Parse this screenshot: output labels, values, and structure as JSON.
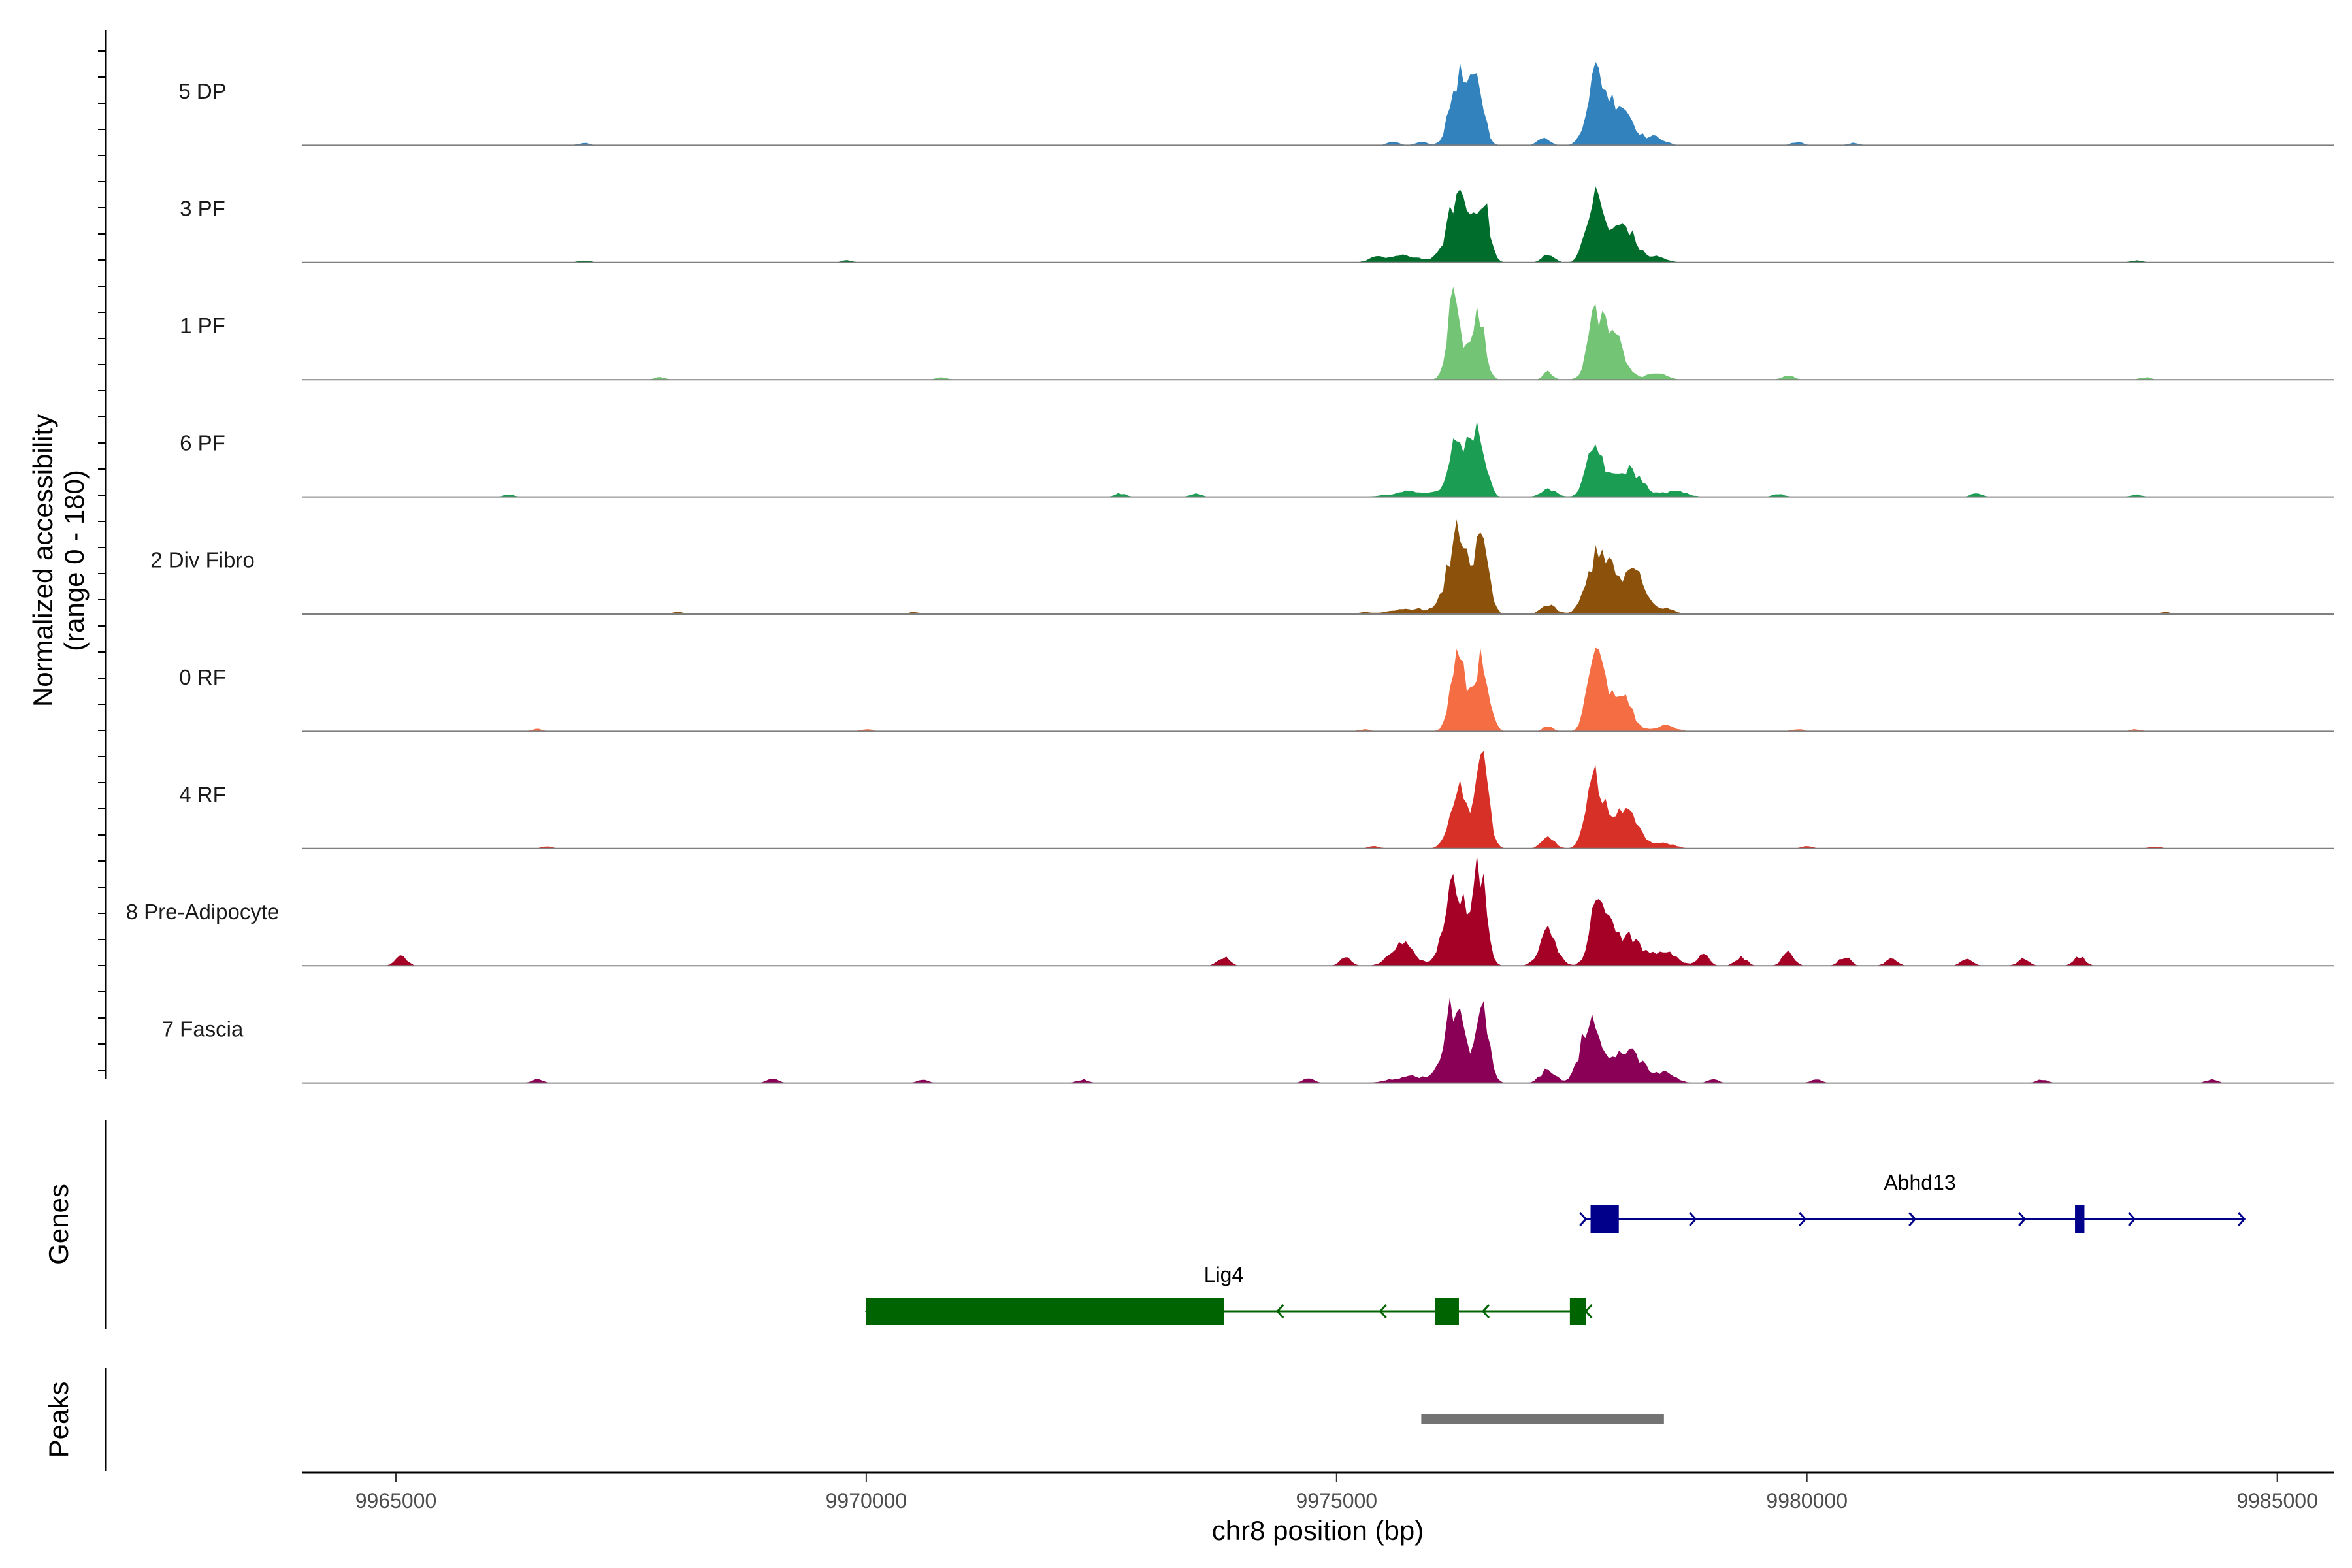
{
  "chart_data": {
    "type": "area",
    "title": "",
    "ylabel": "Normalized accessibility",
    "ylabel_range": "(range 0 - 180)",
    "ylim": [
      0,
      180
    ],
    "xlabel": "chr8 position (bp)",
    "xlim": [
      9964000,
      9985600
    ],
    "xticks": [
      9965000,
      9970000,
      9975000,
      9980000,
      9985000
    ],
    "xtick_labels": [
      "9965000",
      "9970000",
      "9975000",
      "9980000",
      "9985000"
    ],
    "tracks": [
      {
        "name": "5 DP",
        "color": "#3182bd",
        "peaks": [
          [
            9976300,
            0.62,
            90
          ],
          [
            9976500,
            0.52,
            70
          ],
          [
            9977200,
            0.08,
            60
          ],
          [
            9977750,
            0.58,
            90
          ],
          [
            9978000,
            0.38,
            140
          ],
          [
            9978400,
            0.07,
            90
          ]
        ],
        "bumps": [
          [
            9967000,
            0.02
          ],
          [
            9975600,
            0.03
          ],
          [
            9975900,
            0.03
          ],
          [
            9979900,
            0.03
          ],
          [
            9980500,
            0.02
          ]
        ]
      },
      {
        "name": "3 PF",
        "color": "#006d2c",
        "peaks": [
          [
            9975700,
            0.06,
            200
          ],
          [
            9976300,
            0.62,
            110
          ],
          [
            9976550,
            0.55,
            70
          ],
          [
            9977250,
            0.08,
            60
          ],
          [
            9977750,
            0.58,
            90
          ],
          [
            9978050,
            0.34,
            120
          ],
          [
            9978400,
            0.05,
            100
          ]
        ],
        "bumps": [
          [
            9967000,
            0.02
          ],
          [
            9969800,
            0.02
          ],
          [
            9975400,
            0.03
          ],
          [
            9983500,
            0.02
          ]
        ]
      },
      {
        "name": "1 PF",
        "color": "#74c476",
        "peaks": [
          [
            9976250,
            0.76,
            70
          ],
          [
            9976500,
            0.62,
            70
          ],
          [
            9977250,
            0.07,
            50
          ],
          [
            9977750,
            0.54,
            80
          ],
          [
            9977950,
            0.37,
            110
          ],
          [
            9978400,
            0.06,
            100
          ]
        ],
        "bumps": [
          [
            9967800,
            0.02
          ],
          [
            9970800,
            0.02
          ],
          [
            9979800,
            0.04
          ],
          [
            9983600,
            0.02
          ]
        ]
      },
      {
        "name": "6 PF",
        "color": "#1b9e54",
        "peaks": [
          [
            9975800,
            0.05,
            200
          ],
          [
            9976300,
            0.52,
            100
          ],
          [
            9976520,
            0.56,
            70
          ],
          [
            9977250,
            0.07,
            80
          ],
          [
            9977750,
            0.44,
            90
          ],
          [
            9978100,
            0.25,
            140
          ],
          [
            9978600,
            0.05,
            120
          ]
        ],
        "bumps": [
          [
            9966200,
            0.02
          ],
          [
            9972700,
            0.03
          ],
          [
            9973500,
            0.03
          ],
          [
            9979700,
            0.03
          ],
          [
            9981800,
            0.03
          ],
          [
            9983500,
            0.02
          ]
        ]
      },
      {
        "name": "2 Div Fibro",
        "color": "#8c510a",
        "peaks": [
          [
            9975800,
            0.05,
            200
          ],
          [
            9976300,
            0.74,
            110
          ],
          [
            9976550,
            0.58,
            70
          ],
          [
            9977250,
            0.08,
            80
          ],
          [
            9977800,
            0.6,
            120
          ],
          [
            9978150,
            0.38,
            120
          ],
          [
            9978500,
            0.05,
            90
          ]
        ],
        "bumps": [
          [
            9968000,
            0.02
          ],
          [
            9970500,
            0.02
          ],
          [
            9975300,
            0.02
          ],
          [
            9983800,
            0.02
          ]
        ]
      },
      {
        "name": "0 RF",
        "color": "#f46d43",
        "peaks": [
          [
            9976300,
            0.72,
            80
          ],
          [
            9976550,
            0.66,
            70
          ],
          [
            9977250,
            0.05,
            50
          ],
          [
            9977750,
            0.66,
            80
          ],
          [
            9978000,
            0.36,
            120
          ],
          [
            9978500,
            0.05,
            100
          ]
        ],
        "bumps": [
          [
            9966500,
            0.02
          ],
          [
            9970000,
            0.02
          ],
          [
            9975300,
            0.02
          ],
          [
            9979900,
            0.02
          ],
          [
            9983500,
            0.02
          ]
        ]
      },
      {
        "name": "4 RF",
        "color": "#d73027",
        "peaks": [
          [
            9976300,
            0.6,
            90
          ],
          [
            9976550,
            0.74,
            70
          ],
          [
            9977250,
            0.1,
            70
          ],
          [
            9977750,
            0.6,
            90
          ],
          [
            9978050,
            0.34,
            140
          ],
          [
            9978500,
            0.05,
            100
          ]
        ],
        "bumps": [
          [
            9966600,
            0.02
          ],
          [
            9975400,
            0.02
          ],
          [
            9980000,
            0.02
          ],
          [
            9983700,
            0.02
          ]
        ]
      },
      {
        "name": "8 Pre-Adipocyte",
        "color": "#a50026",
        "peaks": [
          [
            9975700,
            0.2,
            120
          ],
          [
            9976250,
            0.8,
            100
          ],
          [
            9976520,
            0.88,
            70
          ],
          [
            9977250,
            0.3,
            90
          ],
          [
            9977800,
            0.66,
            90
          ],
          [
            9978100,
            0.26,
            140
          ],
          [
            9978500,
            0.12,
            120
          ]
        ],
        "bumps": [
          [
            9965050,
            0.09
          ],
          [
            9973800,
            0.08
          ],
          [
            9975100,
            0.07
          ],
          [
            9978900,
            0.1
          ],
          [
            9979300,
            0.08
          ],
          [
            9979800,
            0.12
          ],
          [
            9980400,
            0.08
          ],
          [
            9980900,
            0.07
          ],
          [
            9981700,
            0.06
          ],
          [
            9982300,
            0.06
          ],
          [
            9982900,
            0.08
          ]
        ]
      },
      {
        "name": "7 Fascia",
        "color": "#8b0057",
        "peaks": [
          [
            9975800,
            0.06,
            200
          ],
          [
            9976250,
            0.7,
            100
          ],
          [
            9976550,
            0.62,
            70
          ],
          [
            9977250,
            0.12,
            80
          ],
          [
            9977700,
            0.58,
            100
          ],
          [
            9978100,
            0.3,
            150
          ],
          [
            9978500,
            0.08,
            110
          ]
        ],
        "bumps": [
          [
            9966500,
            0.03
          ],
          [
            9969000,
            0.04
          ],
          [
            9970600,
            0.03
          ],
          [
            9972300,
            0.03
          ],
          [
            9974700,
            0.04
          ],
          [
            9979000,
            0.03
          ],
          [
            9980100,
            0.03
          ],
          [
            9982500,
            0.03
          ],
          [
            9984300,
            0.03
          ]
        ]
      }
    ],
    "genes_label": "Genes",
    "genes": [
      {
        "name": "Abhd13",
        "color": "#00008b",
        "strand": "+",
        "start": 9977650,
        "end": 9984650,
        "exons": [
          [
            9977700,
            9978000
          ],
          [
            9982850,
            9982950
          ]
        ]
      },
      {
        "name": "Lig4",
        "color": "#006400",
        "strand": "-",
        "start": 9970000,
        "end": 9977650,
        "exons": [
          [
            9970000,
            9973800
          ],
          [
            9976050,
            9976300
          ],
          [
            9977480,
            9977650
          ]
        ]
      }
    ],
    "peaks_label": "Peaks",
    "peak_regions": [
      [
        9975900,
        9978480
      ]
    ]
  }
}
